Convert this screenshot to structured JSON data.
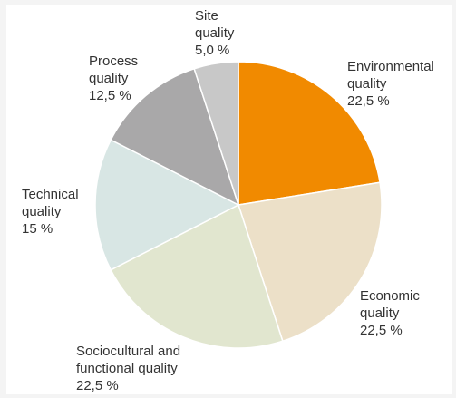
{
  "chart_data": {
    "type": "pie",
    "title": "",
    "slices": [
      {
        "name": "Environmental quality",
        "label_lines": [
          "Environmental",
          "quality"
        ],
        "value": 22.5,
        "value_label": "22,5 %",
        "color": "#f18a00"
      },
      {
        "name": "Economic quality",
        "label_lines": [
          "Economic",
          "quality"
        ],
        "value": 22.5,
        "value_label": "22,5 %",
        "color": "#ece0c8"
      },
      {
        "name": "Sociocultural and functional quality",
        "label_lines": [
          "Sociocultural and",
          "functional quality"
        ],
        "value": 22.5,
        "value_label": "22,5 %",
        "color": "#e1e6cf"
      },
      {
        "name": "Technical quality",
        "label_lines": [
          "Technical",
          "quality"
        ],
        "value": 15.0,
        "value_label": "15 %",
        "color": "#d8e6e4"
      },
      {
        "name": "Process quality",
        "label_lines": [
          "Process",
          "quality"
        ],
        "value": 12.5,
        "value_label": "12,5 %",
        "color": "#a9a8a9"
      },
      {
        "name": "Site quality",
        "label_lines": [
          "Site",
          "quality"
        ],
        "value": 5.0,
        "value_label": "5,0 %",
        "color": "#c8c8c8"
      }
    ]
  }
}
